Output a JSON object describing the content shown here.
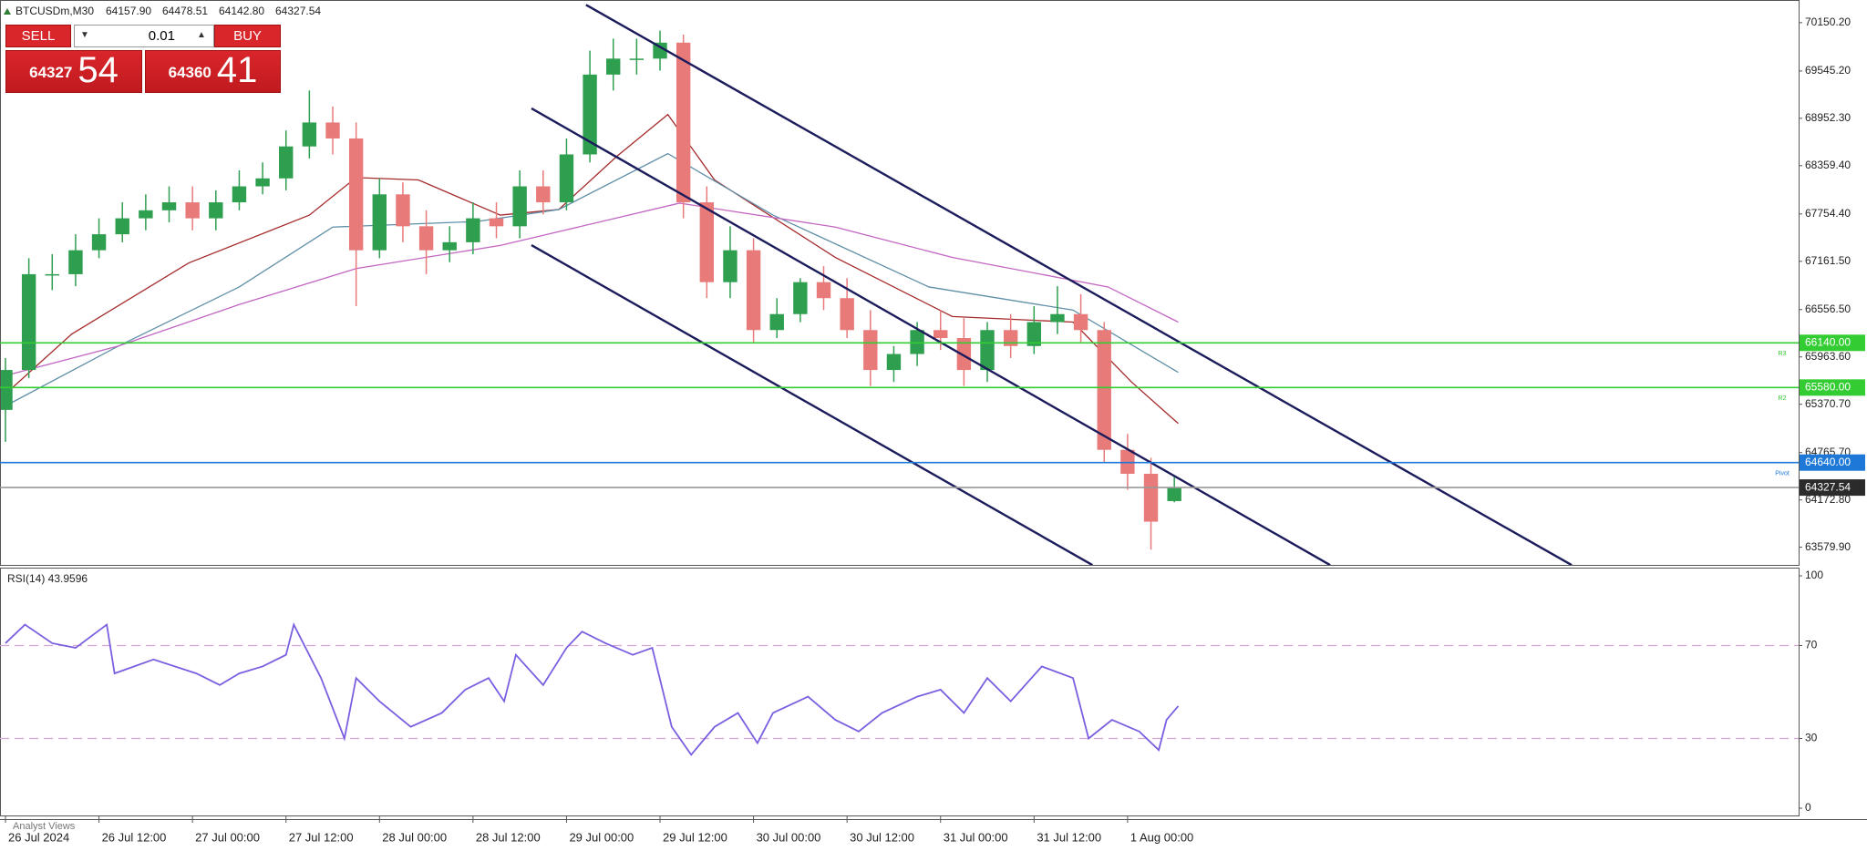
{
  "chart_data": [
    {
      "type": "candlestick",
      "title": "BTCUSDm,M30",
      "ohlc_header": [
        "64157.90",
        "64478.51",
        "64142.80",
        "64327.54"
      ],
      "up_color": "#2e9e4f",
      "down_color": "#e87a7a",
      "x": [
        0,
        6,
        12,
        18,
        24,
        30,
        36,
        42,
        48,
        54,
        60,
        66,
        72,
        78,
        84,
        90,
        96,
        102,
        108,
        114,
        120,
        126,
        132,
        138,
        144,
        150,
        156,
        162,
        168,
        174,
        180,
        186,
        192,
        198,
        204,
        210,
        216,
        222,
        228,
        234,
        240,
        246,
        252,
        258,
        264,
        270,
        276,
        282,
        288,
        294,
        300
      ],
      "open": [
        65300,
        65800,
        67000,
        67000,
        67300,
        67500,
        67700,
        67800,
        67900,
        67700,
        67900,
        68100,
        68200,
        68600,
        68900,
        68700,
        67300,
        68000,
        67600,
        67300,
        67400,
        67700,
        67600,
        68100,
        67900,
        68500,
        69500,
        69700,
        69700,
        69900,
        67900,
        66900,
        67300,
        66300,
        66500,
        66900,
        66700,
        66300,
        65800,
        66000,
        66300,
        66200,
        65800,
        66300,
        66100,
        66400,
        66500,
        66300,
        64800,
        64500,
        64157.9
      ],
      "high": [
        65950,
        67200,
        67250,
        67500,
        67700,
        67900,
        68000,
        68100,
        68100,
        68050,
        68300,
        68400,
        68800,
        69300,
        69100,
        68900,
        68200,
        68150,
        67800,
        67600,
        67900,
        67900,
        68300,
        68300,
        68700,
        69800,
        69950,
        69950,
        70050,
        70000,
        68100,
        67600,
        67450,
        66700,
        66950,
        67100,
        66950,
        66550,
        66100,
        66400,
        66550,
        66450,
        66400,
        66500,
        66600,
        66850,
        66750,
        66400,
        65000,
        64700,
        64478.51
      ],
      "low": [
        64900,
        65700,
        66800,
        66850,
        67200,
        67400,
        67550,
        67650,
        67550,
        67550,
        67800,
        68000,
        68050,
        68450,
        68500,
        66600,
        67200,
        67400,
        67000,
        67150,
        67250,
        67450,
        67450,
        67750,
        67800,
        68400,
        69300,
        69500,
        69550,
        67700,
        66700,
        66700,
        66150,
        66200,
        66400,
        66550,
        66200,
        65600,
        65650,
        65850,
        66050,
        65600,
        65650,
        65950,
        66000,
        66250,
        66150,
        64650,
        64300,
        63550,
        64142.8
      ],
      "close": [
        65800,
        67000,
        67000,
        67300,
        67500,
        67700,
        67800,
        67900,
        67700,
        67900,
        68100,
        68200,
        68600,
        68900,
        68700,
        67300,
        68000,
        67600,
        67300,
        67400,
        67700,
        67600,
        68100,
        67900,
        68500,
        69500,
        69700,
        69700,
        69900,
        67900,
        66900,
        67300,
        66300,
        66500,
        66900,
        66700,
        66300,
        65800,
        66000,
        66300,
        66200,
        65800,
        66300,
        66100,
        66400,
        66500,
        66300,
        64800,
        64500,
        63900,
        64327.54
      ],
      "moving_averages": [
        {
          "color": "#a52a2a",
          "x": [
            0,
            17,
            47,
            78,
            90,
            106,
            127,
            142,
            157,
            170,
            182,
            213,
            243,
            274,
            289,
            301
          ],
          "values": [
            65500,
            66250,
            67140,
            67740,
            68210,
            68180,
            67740,
            67810,
            68480,
            69000,
            68180,
            67210,
            66470,
            66400,
            65650,
            65130
          ]
        },
        {
          "color": "#5f8fa8",
          "x": [
            0,
            29,
            60,
            84,
            121,
            142,
            170,
            197,
            237,
            274,
            301
          ],
          "values": [
            65350,
            66100,
            66840,
            67590,
            67660,
            67810,
            68510,
            67740,
            66840,
            66550,
            65770
          ]
        },
        {
          "color": "#c266c2",
          "x": [
            0,
            29,
            60,
            90,
            127,
            173,
            213,
            243,
            283,
            301
          ],
          "values": [
            65730,
            66100,
            66620,
            67070,
            67360,
            67890,
            67590,
            67210,
            66840,
            66400
          ]
        }
      ],
      "trendlines": {
        "color": "#1c1c5c",
        "lines": [
          {
            "x": [
              149,
              402
            ],
            "values": [
              70374,
              63356
            ]
          },
          {
            "x": [
              135,
              340
            ],
            "values": [
              69077,
              63356
            ]
          },
          {
            "x": [
              135,
              279
            ],
            "values": [
              67364,
              63356
            ]
          }
        ]
      },
      "levels": [
        {
          "value": 66140,
          "label": "66140.00",
          "color": "#33cc33",
          "tag": "R3"
        },
        {
          "value": 65580,
          "label": "65580.00",
          "color": "#33cc33",
          "tag": "R2"
        },
        {
          "value": 64640,
          "label": "64640.00",
          "color": "#1e78d7",
          "tag": "Pivot"
        },
        {
          "value": 64327.54,
          "label": "64327.54",
          "color": "#999999",
          "tag_color": "#2b2b2b"
        }
      ],
      "xlim": [
        0,
        460
      ],
      "xticks": [
        {
          "value": 0,
          "label": "26 Jul 2024"
        },
        {
          "value": 24,
          "label": "26 Jul 12:00"
        },
        {
          "value": 48,
          "label": "27 Jul 00:00"
        },
        {
          "value": 72,
          "label": "27 Jul 12:00"
        },
        {
          "value": 96,
          "label": "28 Jul 00:00"
        },
        {
          "value": 120,
          "label": "28 Jul 12:00"
        },
        {
          "value": 144,
          "label": "29 Jul 00:00"
        },
        {
          "value": 168,
          "label": "29 Jul 12:00"
        },
        {
          "value": 192,
          "label": "30 Jul 00:00"
        },
        {
          "value": 216,
          "label": "30 Jul 12:00"
        },
        {
          "value": 240,
          "label": "31 Jul 00:00"
        },
        {
          "value": 264,
          "label": "31 Jul 12:00"
        },
        {
          "value": 288,
          "label": "1 Aug 00:00"
        }
      ],
      "ylim": [
        63370,
        70400
      ],
      "yticks": [
        {
          "value": 70150.2,
          "label": "70150.20"
        },
        {
          "value": 69545.2,
          "label": "69545.20"
        },
        {
          "value": 68952.3,
          "label": "68952.30"
        },
        {
          "value": 68359.4,
          "label": "68359.40"
        },
        {
          "value": 67754.4,
          "label": "67754.40"
        },
        {
          "value": 67161.5,
          "label": "67161.50"
        },
        {
          "value": 66556.5,
          "label": "66556.50"
        },
        {
          "value": 65963.6,
          "label": "65963.60"
        },
        {
          "value": 65370.7,
          "label": "65370.70"
        },
        {
          "value": 64765.7,
          "label": "64765.70"
        },
        {
          "value": 64172.8,
          "label": "64172.80"
        },
        {
          "value": 63579.9,
          "label": "63579.90"
        }
      ]
    },
    {
      "type": "line",
      "title": "RSI(14) 43.9596",
      "color": "#7b5fe0",
      "x": [
        0,
        5,
        12,
        18,
        26,
        28,
        38,
        49,
        55,
        60,
        66,
        72,
        74,
        81,
        87,
        90,
        96,
        104,
        112,
        118,
        124,
        128,
        131,
        138,
        144,
        148,
        154,
        161,
        166,
        171,
        176,
        182,
        188,
        193,
        197,
        206,
        213,
        219,
        225,
        234,
        240,
        246,
        252,
        258,
        266,
        274,
        278,
        284,
        291,
        296,
        298,
        301
      ],
      "values": [
        71,
        79,
        71,
        69,
        79,
        58,
        64,
        58,
        53,
        58,
        61,
        66,
        79,
        56,
        30,
        56,
        46,
        35,
        41,
        51,
        56,
        46,
        66,
        53,
        69,
        76,
        71,
        66,
        69,
        35,
        23,
        35,
        41,
        28,
        41,
        48,
        38,
        33,
        41,
        48,
        51,
        41,
        56,
        46,
        61,
        56,
        30,
        38,
        33,
        25,
        38,
        43.9596
      ],
      "levels": [
        30,
        70
      ],
      "level_color": "#d4a8d4",
      "xlim": [
        0,
        460
      ],
      "ylim": [
        0,
        100
      ],
      "yticks": [
        0,
        30,
        70,
        100
      ]
    }
  ],
  "trade_panel": {
    "sell": "SELL",
    "buy": "BUY",
    "volume": "0.01",
    "sell_price_main": "64327",
    "sell_price_big": "54",
    "buy_price_main": "64360",
    "buy_price_big": "41"
  },
  "footer_tab": "Analyst Views"
}
